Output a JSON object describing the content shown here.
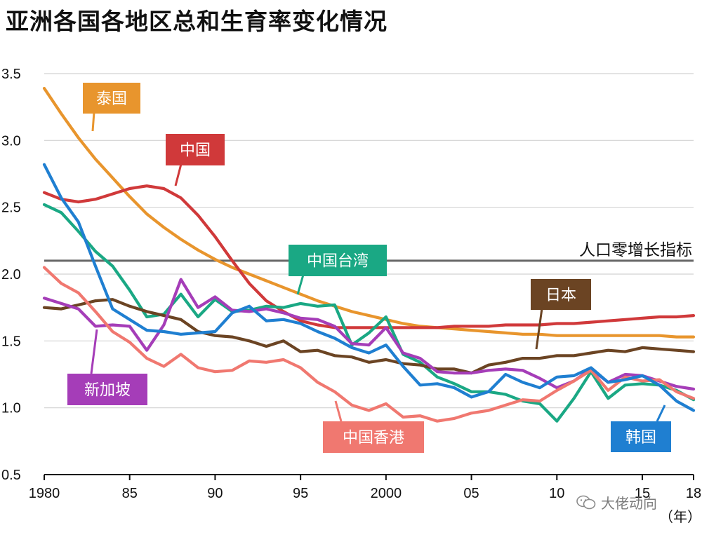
{
  "title": "亚洲各国各地区总和生育率变化情况",
  "watermark": "大佬动向",
  "chart_data": {
    "type": "line",
    "title": "亚洲各国各地区总和生育率变化情况",
    "xlabel": "年",
    "ylabel": "",
    "xlim": [
      1980,
      2018
    ],
    "ylim": [
      0.5,
      3.5
    ],
    "grid": true,
    "x_ticks": [
      1980,
      1985,
      1990,
      1995,
      2000,
      2005,
      2010,
      2015,
      2018
    ],
    "x_tick_labels": [
      "1980",
      "85",
      "90",
      "95",
      "2000",
      "05",
      "10",
      "15",
      "18"
    ],
    "y_ticks": [
      0.5,
      1.0,
      1.5,
      2.0,
      2.5,
      3.0,
      3.5
    ],
    "y_tick_labels": [
      "0.5",
      "1.0",
      "1.5",
      "2.0",
      "2.5",
      "3.0",
      "3.5"
    ],
    "x_unit_label": "（年）",
    "reference_line": {
      "value": 2.1,
      "label": "人口零增长指标",
      "color": "#666666"
    },
    "x": [
      1980,
      1981,
      1982,
      1983,
      1984,
      1985,
      1986,
      1987,
      1988,
      1989,
      1990,
      1991,
      1992,
      1993,
      1994,
      1995,
      1996,
      1997,
      1998,
      1999,
      2000,
      2001,
      2002,
      2003,
      2004,
      2005,
      2006,
      2007,
      2008,
      2009,
      2010,
      2011,
      2012,
      2013,
      2014,
      2015,
      2016,
      2017,
      2018
    ],
    "series": [
      {
        "name": "泰国",
        "color": "#E8952D",
        "values": [
          3.39,
          3.2,
          3.02,
          2.86,
          2.72,
          2.58,
          2.45,
          2.35,
          2.26,
          2.18,
          2.11,
          2.05,
          2.0,
          1.95,
          1.9,
          1.85,
          1.8,
          1.76,
          1.72,
          1.69,
          1.66,
          1.63,
          1.61,
          1.6,
          1.59,
          1.58,
          1.57,
          1.56,
          1.55,
          1.55,
          1.54,
          1.54,
          1.54,
          1.54,
          1.54,
          1.54,
          1.54,
          1.53,
          1.53
        ]
      },
      {
        "name": "中国",
        "color": "#D0393A",
        "values": [
          2.61,
          2.56,
          2.54,
          2.56,
          2.6,
          2.64,
          2.66,
          2.64,
          2.57,
          2.44,
          2.28,
          2.1,
          1.93,
          1.8,
          1.72,
          1.65,
          1.62,
          1.6,
          1.6,
          1.6,
          1.6,
          1.6,
          1.6,
          1.6,
          1.61,
          1.61,
          1.61,
          1.62,
          1.62,
          1.62,
          1.63,
          1.63,
          1.64,
          1.65,
          1.66,
          1.67,
          1.68,
          1.68,
          1.69
        ]
      },
      {
        "name": "中国台湾",
        "color": "#1AA884",
        "values": [
          2.52,
          2.46,
          2.32,
          2.17,
          2.06,
          1.88,
          1.68,
          1.7,
          1.85,
          1.68,
          1.81,
          1.72,
          1.73,
          1.76,
          1.75,
          1.78,
          1.76,
          1.77,
          1.47,
          1.56,
          1.68,
          1.4,
          1.34,
          1.23,
          1.18,
          1.12,
          1.12,
          1.1,
          1.05,
          1.03,
          0.9,
          1.07,
          1.27,
          1.07,
          1.17,
          1.18,
          1.17,
          1.13,
          1.06
        ]
      },
      {
        "name": "日本",
        "color": "#6B4423",
        "values": [
          1.75,
          1.74,
          1.77,
          1.8,
          1.81,
          1.76,
          1.72,
          1.69,
          1.66,
          1.57,
          1.54,
          1.53,
          1.5,
          1.46,
          1.5,
          1.42,
          1.43,
          1.39,
          1.38,
          1.34,
          1.36,
          1.33,
          1.32,
          1.29,
          1.29,
          1.26,
          1.32,
          1.34,
          1.37,
          1.37,
          1.39,
          1.39,
          1.41,
          1.43,
          1.42,
          1.45,
          1.44,
          1.43,
          1.42
        ]
      },
      {
        "name": "新加坡",
        "color": "#A53DB8",
        "values": [
          1.82,
          1.78,
          1.74,
          1.61,
          1.62,
          1.61,
          1.43,
          1.62,
          1.96,
          1.75,
          1.83,
          1.73,
          1.72,
          1.74,
          1.71,
          1.67,
          1.66,
          1.61,
          1.48,
          1.47,
          1.6,
          1.41,
          1.37,
          1.27,
          1.26,
          1.26,
          1.28,
          1.29,
          1.28,
          1.22,
          1.15,
          1.2,
          1.29,
          1.19,
          1.25,
          1.24,
          1.2,
          1.16,
          1.14
        ]
      },
      {
        "name": "中国香港",
        "color": "#F07870",
        "values": [
          2.05,
          1.93,
          1.86,
          1.72,
          1.57,
          1.49,
          1.37,
          1.31,
          1.4,
          1.3,
          1.27,
          1.28,
          1.35,
          1.34,
          1.36,
          1.3,
          1.19,
          1.12,
          1.02,
          0.98,
          1.03,
          0.93,
          0.94,
          0.9,
          0.92,
          0.96,
          0.98,
          1.02,
          1.06,
          1.05,
          1.13,
          1.2,
          1.28,
          1.13,
          1.23,
          1.2,
          1.21,
          1.12,
          1.07
        ]
      },
      {
        "name": "韩国",
        "color": "#1F7FD1",
        "values": [
          2.82,
          2.57,
          2.39,
          2.06,
          1.74,
          1.66,
          1.58,
          1.57,
          1.55,
          1.56,
          1.57,
          1.71,
          1.76,
          1.65,
          1.66,
          1.63,
          1.57,
          1.52,
          1.45,
          1.41,
          1.47,
          1.31,
          1.17,
          1.18,
          1.15,
          1.08,
          1.12,
          1.25,
          1.19,
          1.15,
          1.23,
          1.24,
          1.3,
          1.19,
          1.21,
          1.24,
          1.17,
          1.05,
          0.98
        ]
      }
    ],
    "annotations": [
      {
        "text": "泰国",
        "series": "泰国"
      },
      {
        "text": "中国",
        "series": "中国"
      },
      {
        "text": "中国台湾",
        "series": "中国台湾"
      },
      {
        "text": "日本",
        "series": "日本"
      },
      {
        "text": "新加坡",
        "series": "新加坡"
      },
      {
        "text": "中国香港",
        "series": "中国香港"
      },
      {
        "text": "韩国",
        "series": "韩国"
      }
    ]
  }
}
